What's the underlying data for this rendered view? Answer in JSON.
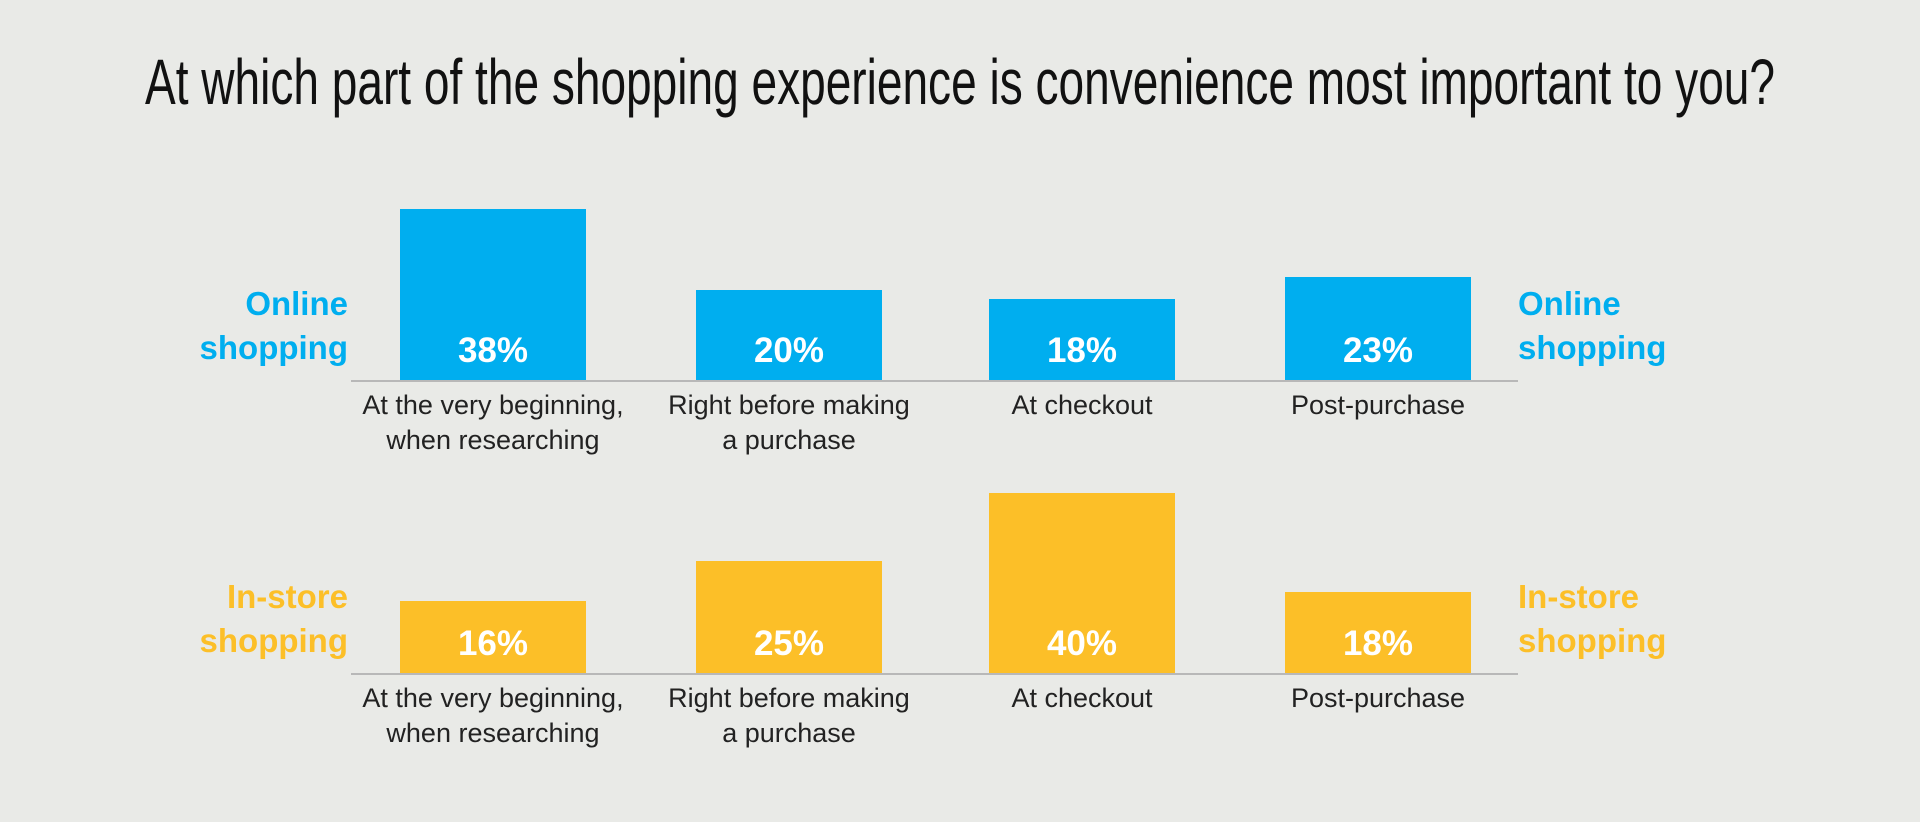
{
  "title": "At which part of the shopping experience is convenience most important to you?",
  "chart_data": [
    {
      "type": "bar",
      "categories": [
        "At the very beginning,\nwhen researching",
        "Right before making\na purchase",
        "At checkout",
        "Post-purchase"
      ],
      "series": [
        {
          "name": "Online\nshopping",
          "color": "#00aeef",
          "values": [
            38,
            20,
            18,
            23
          ],
          "value_labels": [
            "38%",
            "20%",
            "18%",
            "23%"
          ]
        }
      ]
    },
    {
      "type": "bar",
      "categories": [
        "At the very beginning,\nwhen researching",
        "Right before making\na purchase",
        "At checkout",
        "Post-purchase"
      ],
      "series": [
        {
          "name": "In-store\nshopping",
          "color": "#fcbf28",
          "values": [
            16,
            25,
            40,
            18
          ],
          "value_labels": [
            "16%",
            "25%",
            "40%",
            "18%"
          ]
        }
      ]
    }
  ]
}
